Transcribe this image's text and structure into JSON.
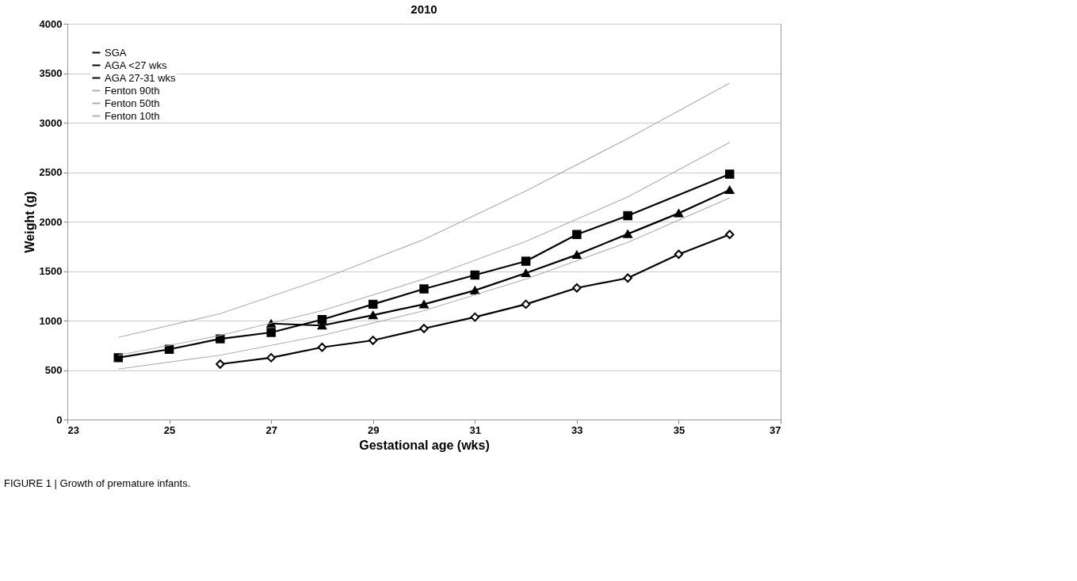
{
  "chart_data": {
    "type": "line",
    "title": "2010",
    "xlabel": "Gestational age (wks)",
    "ylabel": "Weight (g)",
    "xlim": [
      23,
      37
    ],
    "xticks": [
      23,
      25,
      27,
      29,
      31,
      33,
      35,
      37
    ],
    "ylim": [
      0,
      4000
    ],
    "yticks": [
      0,
      500,
      1000,
      1500,
      2000,
      2500,
      3000,
      3500,
      4000
    ],
    "grid": "y",
    "legend": "top left",
    "series": [
      {
        "name": "SGA",
        "color": "#000000",
        "marker": "diamond",
        "x": [
          26,
          27,
          28,
          29,
          30,
          31,
          32,
          33,
          34,
          35,
          36
        ],
        "values": [
          560,
          625,
          730,
          800,
          920,
          1035,
          1165,
          1330,
          1430,
          1670,
          1870
        ]
      },
      {
        "name": "AGA <27 wks",
        "color": "#000000",
        "marker": "square",
        "x": [
          24,
          25,
          26,
          27,
          28,
          29,
          30,
          31,
          32,
          33,
          34,
          36
        ],
        "values": [
          625,
          710,
          815,
          880,
          1010,
          1165,
          1320,
          1460,
          1600,
          1870,
          2060,
          2480
        ]
      },
      {
        "name": "AGA 27-31 wks",
        "color": "#000000",
        "marker": "triangle",
        "x": [
          27,
          28,
          29,
          30,
          31,
          32,
          33,
          34,
          35,
          36
        ],
        "values": [
          970,
          950,
          1055,
          1165,
          1305,
          1480,
          1665,
          1875,
          2085,
          2320
        ]
      },
      {
        "name": "Fenton 90th",
        "color": "#b0b0b0",
        "marker": "none",
        "x": [
          24,
          26,
          28,
          30,
          32,
          34,
          36
        ],
        "values": [
          830,
          1070,
          1420,
          1820,
          2310,
          2840,
          3400
        ]
      },
      {
        "name": "Fenton 50th",
        "color": "#b0b0b0",
        "marker": "none",
        "x": [
          24,
          26,
          28,
          30,
          32,
          34,
          36
        ],
        "values": [
          650,
          850,
          1100,
          1420,
          1800,
          2250,
          2800
        ]
      },
      {
        "name": "Fenton 10th",
        "color": "#b0b0b0",
        "marker": "none",
        "x": [
          24,
          26,
          28,
          30,
          32,
          34,
          36
        ],
        "values": [
          510,
          650,
          850,
          1100,
          1420,
          1790,
          2240
        ]
      }
    ],
    "annotations": [
      "FIGURE 1 | Growth of premature infants."
    ]
  }
}
